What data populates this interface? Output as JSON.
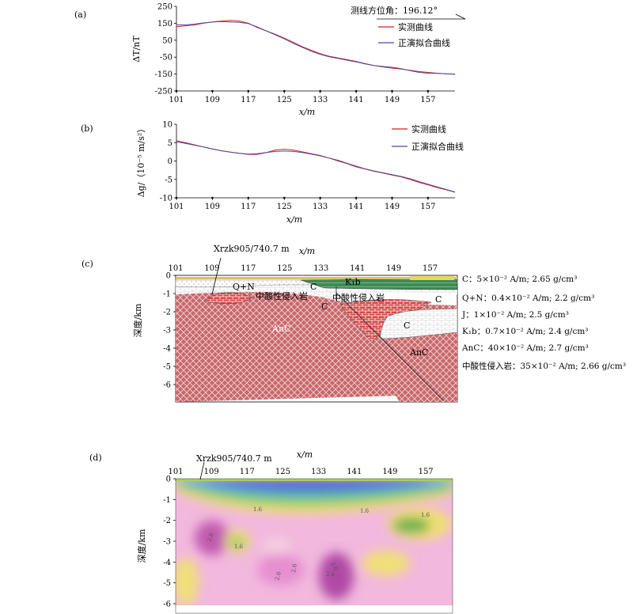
{
  "panels": {
    "a": {
      "label": "(a)",
      "ylabel": "ΔT/nT",
      "xlabel": "x/m",
      "azimuth": "测线方位角：196.12°",
      "legend": [
        "实测曲线",
        "正演拟合曲线"
      ]
    },
    "b": {
      "label": "(b)",
      "ylabel": "Δg/（10⁻⁵ m/s²）",
      "xlabel": "x/m",
      "legend": [
        "实测曲线",
        "正演拟合曲线"
      ]
    },
    "c": {
      "label": "(c)",
      "well": "Xrzk905/740.7 m",
      "xlabel": "x/m",
      "ylabel": "深度/km",
      "units": {
        "C1": "C",
        "C2": "C",
        "C3": "C",
        "C4": "C",
        "QN": "Q+N",
        "K1b": "K₁b",
        "AnC1": "AnC",
        "AnC2": "AnC",
        "intr1": "中酸性侵入岩",
        "intr2": "中酸性侵入岩"
      },
      "properties": [
        "C：5×10⁻² A/m; 2.65 g/cm³",
        "Q+N：0.4×10⁻² A/m; 2.2 g/cm³",
        "J：1×10⁻² A/m; 2.5 g/cm³",
        "K₁b：0.7×10⁻² A/m; 2.4 g/cm³",
        "AnC：40×10⁻² A/m; 2.7 g/cm³",
        "中酸性侵入岩：35×10⁻² A/m; 2.66 g/cm³"
      ]
    },
    "d": {
      "label": "(d)",
      "well": "Xrzk905/740.7 m",
      "xlabel": "x/m",
      "ylabel": "深度/km",
      "contour_labels": [
        "1.6",
        "1.6",
        "1.6",
        "2.6",
        "1.6",
        "2.6",
        "2.6",
        "2.6",
        "2.6"
      ]
    }
  },
  "colors": {
    "measured": "#d42020",
    "forward": "#4a4aa0",
    "anc": "#c05050",
    "intr": "#d84848"
  },
  "chart_data": [
    {
      "type": "line",
      "title": "",
      "xlabel": "x/m",
      "ylabel": "ΔT/nT",
      "xlim": [
        101,
        163
      ],
      "ylim": [
        -250,
        250
      ],
      "xticks": [
        101,
        109,
        117,
        125,
        133,
        141,
        149,
        157
      ],
      "yticks": [
        250,
        150,
        50,
        -50,
        -150,
        -250
      ],
      "series": [
        {
          "name": "实测曲线",
          "x": [
            101,
            103,
            105,
            107,
            109,
            111,
            113,
            115,
            117,
            119,
            121,
            123,
            125,
            127,
            129,
            131,
            133,
            135,
            137,
            139,
            141,
            143,
            145,
            147,
            149,
            151,
            153,
            155,
            157,
            159,
            161,
            163
          ],
          "values": [
            130,
            135,
            140,
            150,
            158,
            163,
            167,
            163,
            150,
            125,
            105,
            85,
            62,
            38,
            12,
            -10,
            -30,
            -45,
            -55,
            -65,
            -75,
            -88,
            -100,
            -108,
            -115,
            -120,
            -128,
            -135,
            -140,
            -145,
            -148,
            -150
          ]
        },
        {
          "name": "正演拟合曲线",
          "x": [
            101,
            103,
            105,
            107,
            109,
            111,
            113,
            115,
            117,
            119,
            121,
            123,
            125,
            127,
            129,
            131,
            133,
            135,
            137,
            139,
            141,
            143,
            145,
            147,
            149,
            151,
            153,
            155,
            157,
            159,
            161,
            163
          ],
          "values": [
            140,
            140,
            145,
            152,
            157,
            160,
            158,
            155,
            148,
            128,
            105,
            82,
            58,
            32,
            8,
            -15,
            -33,
            -48,
            -58,
            -68,
            -78,
            -90,
            -100,
            -105,
            -110,
            -118,
            -130,
            -140,
            -145,
            -146,
            -148,
            -152
          ]
        }
      ]
    },
    {
      "type": "line",
      "title": "",
      "xlabel": "x/m",
      "ylabel": "Δg/（10⁻⁵ m/s²）",
      "xlim": [
        101,
        163
      ],
      "ylim": [
        -10,
        10
      ],
      "xticks": [
        101,
        109,
        117,
        125,
        133,
        141,
        149,
        157
      ],
      "yticks": [
        10,
        5,
        0,
        -5,
        -10
      ],
      "series": [
        {
          "name": "实测曲线",
          "x": [
            101,
            103,
            105,
            107,
            109,
            111,
            113,
            115,
            117,
            119,
            121,
            123,
            125,
            127,
            129,
            131,
            133,
            135,
            137,
            139,
            141,
            143,
            145,
            147,
            149,
            151,
            153,
            155,
            157,
            159,
            161,
            163
          ],
          "values": [
            5.5,
            5.0,
            4.4,
            3.8,
            3.3,
            2.8,
            2.4,
            2.1,
            1.8,
            1.8,
            2.3,
            3.0,
            3.2,
            3.0,
            2.5,
            2.0,
            1.5,
            0.8,
            0.0,
            -0.7,
            -1.6,
            -2.2,
            -2.8,
            -3.3,
            -3.8,
            -4.3,
            -5.0,
            -5.8,
            -6.5,
            -7.2,
            -7.8,
            -8.5
          ]
        },
        {
          "name": "正演拟合曲线",
          "x": [
            101,
            103,
            105,
            107,
            109,
            111,
            113,
            115,
            117,
            119,
            121,
            123,
            125,
            127,
            129,
            131,
            133,
            135,
            137,
            139,
            141,
            143,
            145,
            147,
            149,
            151,
            153,
            155,
            157,
            159,
            161,
            163
          ],
          "values": [
            5.2,
            4.8,
            4.3,
            3.8,
            3.3,
            2.8,
            2.4,
            2.1,
            1.9,
            2.0,
            2.3,
            2.6,
            2.7,
            2.6,
            2.3,
            1.9,
            1.4,
            0.8,
            0.2,
            -0.6,
            -1.4,
            -2.1,
            -2.7,
            -3.2,
            -3.7,
            -4.2,
            -4.8,
            -5.6,
            -6.3,
            -7.0,
            -7.7,
            -8.4
          ]
        }
      ]
    }
  ],
  "section_axes": {
    "xticks": [
      101,
      109,
      117,
      125,
      133,
      141,
      149,
      157
    ],
    "depth_ticks": [
      0,
      -1,
      -2,
      -3,
      -4,
      -5,
      -6
    ]
  }
}
